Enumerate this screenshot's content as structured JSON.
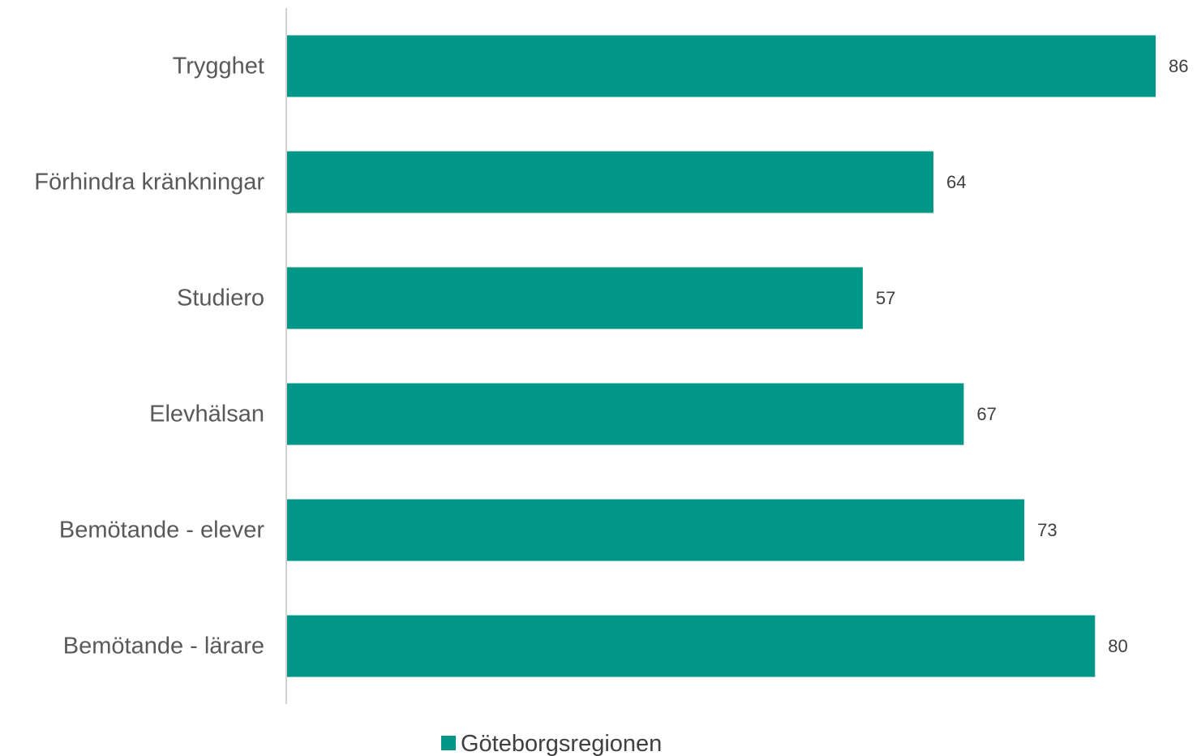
{
  "chart_data": {
    "type": "bar",
    "orientation": "horizontal",
    "categories": [
      "Trygghet",
      "Förhindra kränkningar",
      "Studiero",
      "Elevhälsan",
      "Bemötande - elever",
      "Bemötande - lärare"
    ],
    "series": [
      {
        "name": "Göteborgsregionen",
        "values": [
          86,
          64,
          57,
          67,
          73,
          80
        ],
        "color": "#009688"
      }
    ],
    "title": "",
    "xlabel": "",
    "ylabel": "",
    "xlim": [
      0,
      86
    ],
    "grid": false,
    "legend": "bottom",
    "data_labels": true
  }
}
